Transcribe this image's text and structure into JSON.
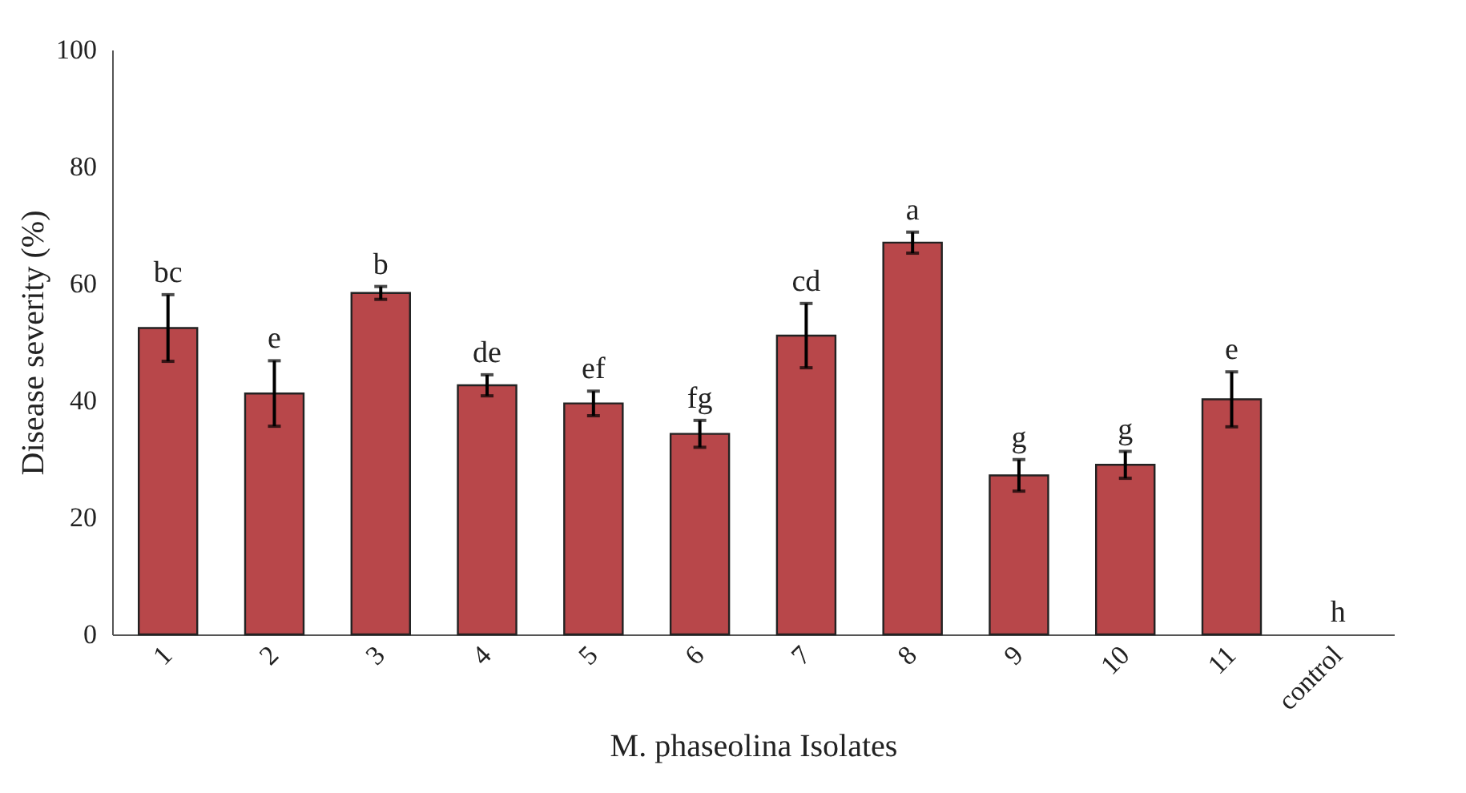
{
  "chart_data": {
    "type": "bar",
    "xlabel": "M. phaseolina Isolates",
    "ylabel": "Disease severity (%)",
    "categories": [
      "1",
      "2",
      "3",
      "4",
      "5",
      "6",
      "7",
      "8",
      "9",
      "10",
      "11",
      "control"
    ],
    "values": [
      52.4,
      41.2,
      58.4,
      42.6,
      39.5,
      34.3,
      51.1,
      67.0,
      27.2,
      29.0,
      40.2,
      0
    ],
    "errors": [
      5.7,
      5.6,
      1.1,
      1.8,
      2.1,
      2.3,
      5.5,
      1.8,
      2.7,
      2.3,
      4.7,
      null
    ],
    "color": "#b8474a",
    "ylim": [
      0,
      100
    ],
    "yticks": [
      0,
      20,
      40,
      60,
      80,
      100
    ],
    "annotations": [
      {
        "text": "bc",
        "x": "1",
        "y": 58.1
      },
      {
        "text": "e",
        "x": "2",
        "y": 46.8
      },
      {
        "text": "b",
        "x": "3",
        "y": 59.5
      },
      {
        "text": "de",
        "x": "4",
        "y": 44.4
      },
      {
        "text": "ef",
        "x": "5",
        "y": 41.6
      },
      {
        "text": "fg",
        "x": "6",
        "y": 36.6
      },
      {
        "text": "cd",
        "x": "7",
        "y": 56.6
      },
      {
        "text": "a",
        "x": "8",
        "y": 68.8
      },
      {
        "text": "g",
        "x": "9",
        "y": 29.9
      },
      {
        "text": "g",
        "x": "10",
        "y": 31.3
      },
      {
        "text": "e",
        "x": "11",
        "y": 44.9
      },
      {
        "text": "h",
        "x": "control",
        "y": 0
      }
    ]
  }
}
